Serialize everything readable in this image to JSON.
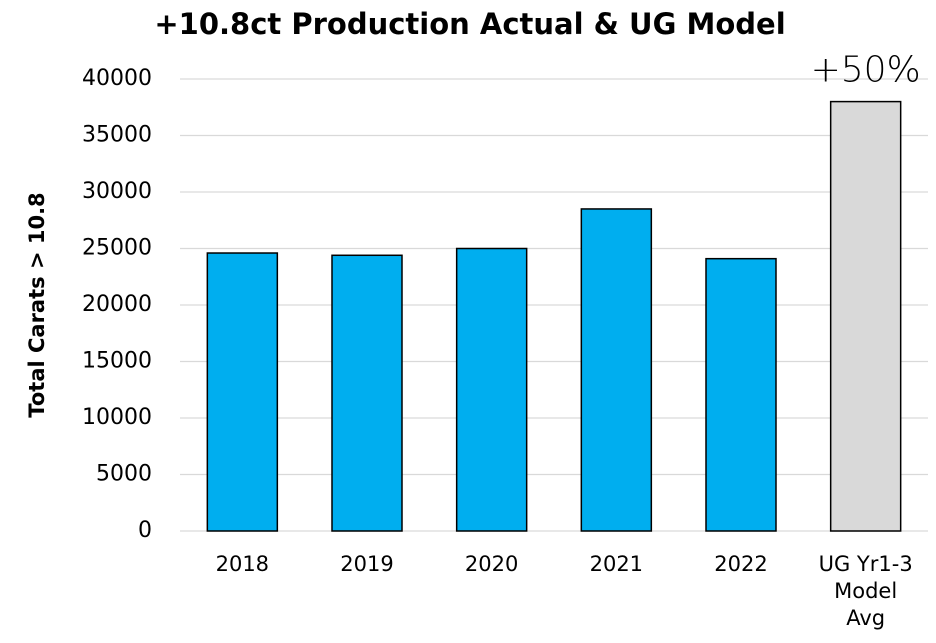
{
  "chart_data": {
    "type": "bar",
    "title": "+10.8ct Production Actual & UG Model",
    "y_label": "Total Carats > 10.8",
    "categories": [
      "2018",
      "2019",
      "2020",
      "2021",
      "2022",
      "UG Yr1-3 Model Avg"
    ],
    "values": [
      24600,
      24400,
      25000,
      28500,
      24100,
      38000
    ],
    "colors": [
      "#00aeef",
      "#00aeef",
      "#00aeef",
      "#00aeef",
      "#00aeef",
      "#d9d9d9"
    ],
    "annotations": [
      {
        "text": "+50%",
        "category": 5
      }
    ],
    "ylim": [
      0,
      40000
    ],
    "yticks": [
      0,
      5000,
      10000,
      15000,
      20000,
      25000,
      30000,
      35000,
      40000
    ],
    "grid": true
  }
}
